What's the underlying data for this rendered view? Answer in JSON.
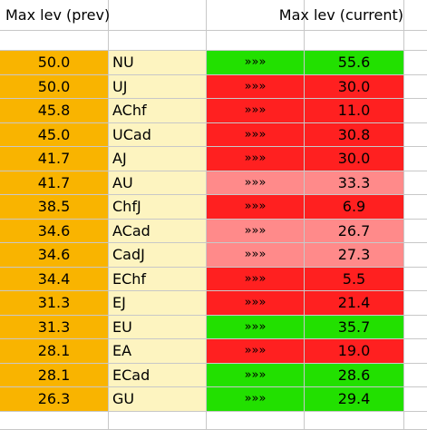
{
  "headers": {
    "col1": "Max lev (prev)",
    "col4": "Max lev (current)"
  },
  "arrow": "»»»",
  "colors": {
    "green": "#22e000",
    "red": "#ff2020",
    "light_red": "#ff8a8a",
    "orange": "#f9b400",
    "cream": "#fdf4c0"
  },
  "rows": [
    {
      "prev": "50.0",
      "label": "NU",
      "current": "55.6",
      "status": "green"
    },
    {
      "prev": "50.0",
      "label": "UJ",
      "current": "30.0",
      "status": "red"
    },
    {
      "prev": "45.8",
      "label": "AChf",
      "current": "11.0",
      "status": "red"
    },
    {
      "prev": "45.0",
      "label": "UCad",
      "current": "30.8",
      "status": "red"
    },
    {
      "prev": "41.7",
      "label": "AJ",
      "current": "30.0",
      "status": "red"
    },
    {
      "prev": "41.7",
      "label": "AU",
      "current": "33.3",
      "status": "light_red"
    },
    {
      "prev": "38.5",
      "label": "ChfJ",
      "current": "6.9",
      "status": "red"
    },
    {
      "prev": "34.6",
      "label": "ACad",
      "current": "26.7",
      "status": "light_red"
    },
    {
      "prev": "34.6",
      "label": "CadJ",
      "current": "27.3",
      "status": "light_red"
    },
    {
      "prev": "34.4",
      "label": "EChf",
      "current": "5.5",
      "status": "red"
    },
    {
      "prev": "31.3",
      "label": "EJ",
      "current": "21.4",
      "status": "red"
    },
    {
      "prev": "31.3",
      "label": "EU",
      "current": "35.7",
      "status": "green"
    },
    {
      "prev": "28.1",
      "label": "EA",
      "current": "19.0",
      "status": "red"
    },
    {
      "prev": "28.1",
      "label": "ECad",
      "current": "28.6",
      "status": "green"
    },
    {
      "prev": "26.3",
      "label": "GU",
      "current": "29.4",
      "status": "green"
    }
  ]
}
